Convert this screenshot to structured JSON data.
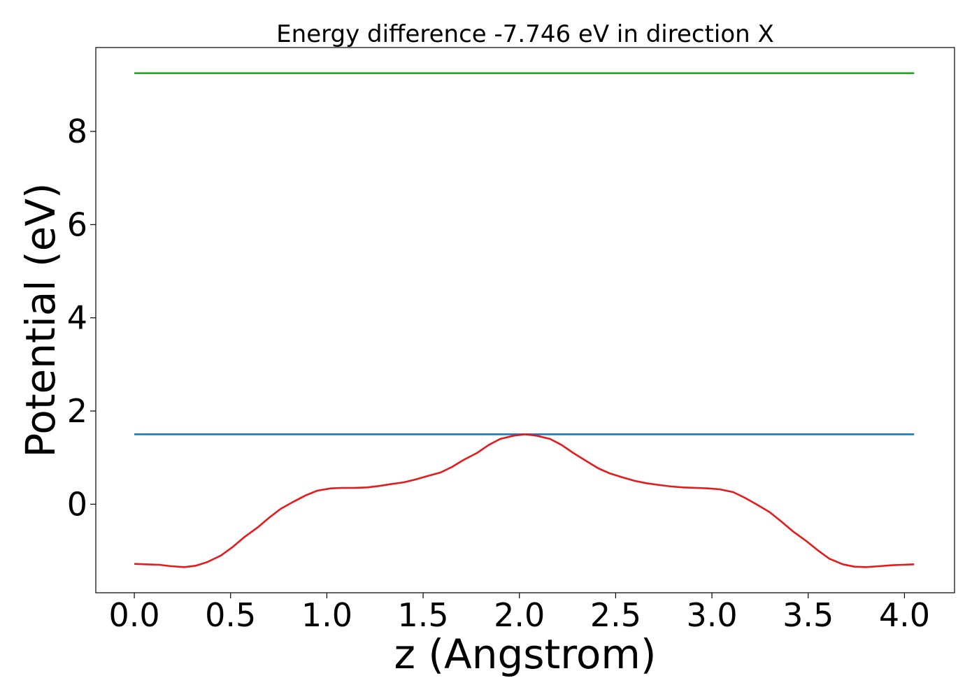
{
  "chart_data": {
    "type": "line",
    "title": "Energy difference -7.746 eV in direction X",
    "xlabel": "z (Angstrom)",
    "ylabel": "Potential (eV)",
    "xlim": [
      -0.2,
      4.26
    ],
    "ylim": [
      -1.9,
      9.8
    ],
    "xticks": [
      0.0,
      0.5,
      1.0,
      1.5,
      2.0,
      2.5,
      3.0,
      3.5,
      4.0
    ],
    "xtick_labels": [
      "0.0",
      "0.5",
      "1.0",
      "1.5",
      "2.0",
      "2.5",
      "3.0",
      "3.5",
      "4.0"
    ],
    "yticks": [
      0,
      2,
      4,
      6,
      8
    ],
    "ytick_labels": [
      "0",
      "2",
      "4",
      "6",
      "8"
    ],
    "grid": false,
    "series": [
      {
        "color": "#2ca02c",
        "x": [
          0.0,
          4.05
        ],
        "y": [
          9.25,
          9.25
        ]
      },
      {
        "color": "#1f77b4",
        "x": [
          0.0,
          4.05
        ],
        "y": [
          1.5,
          1.5
        ]
      },
      {
        "color": "#e41a1c",
        "x": [
          0.0,
          0.06,
          0.13,
          0.19,
          0.26,
          0.32,
          0.38,
          0.45,
          0.51,
          0.57,
          0.64,
          0.7,
          0.76,
          0.83,
          0.89,
          0.95,
          1.02,
          1.08,
          1.14,
          1.21,
          1.27,
          1.33,
          1.4,
          1.46,
          1.52,
          1.59,
          1.65,
          1.71,
          1.78,
          1.84,
          1.9,
          1.97,
          2.03,
          2.09,
          2.16,
          2.22,
          2.28,
          2.35,
          2.41,
          2.47,
          2.54,
          2.6,
          2.66,
          2.73,
          2.79,
          2.85,
          2.92,
          2.98,
          3.04,
          3.11,
          3.17,
          3.23,
          3.3,
          3.36,
          3.42,
          3.49,
          3.55,
          3.61,
          3.68,
          3.74,
          3.8,
          3.87,
          3.93,
          3.99,
          4.05
        ],
        "y": [
          -1.28,
          -1.29,
          -1.3,
          -1.33,
          -1.35,
          -1.32,
          -1.24,
          -1.1,
          -0.92,
          -0.71,
          -0.5,
          -0.29,
          -0.1,
          0.06,
          0.19,
          0.29,
          0.34,
          0.35,
          0.35,
          0.36,
          0.39,
          0.43,
          0.47,
          0.53,
          0.6,
          0.68,
          0.8,
          0.95,
          1.1,
          1.27,
          1.4,
          1.47,
          1.5,
          1.47,
          1.4,
          1.27,
          1.1,
          0.92,
          0.77,
          0.66,
          0.57,
          0.5,
          0.45,
          0.41,
          0.38,
          0.36,
          0.35,
          0.34,
          0.32,
          0.26,
          0.14,
          0.0,
          -0.17,
          -0.37,
          -0.58,
          -0.79,
          -0.99,
          -1.17,
          -1.29,
          -1.34,
          -1.35,
          -1.33,
          -1.31,
          -1.3,
          -1.29
        ]
      }
    ]
  }
}
